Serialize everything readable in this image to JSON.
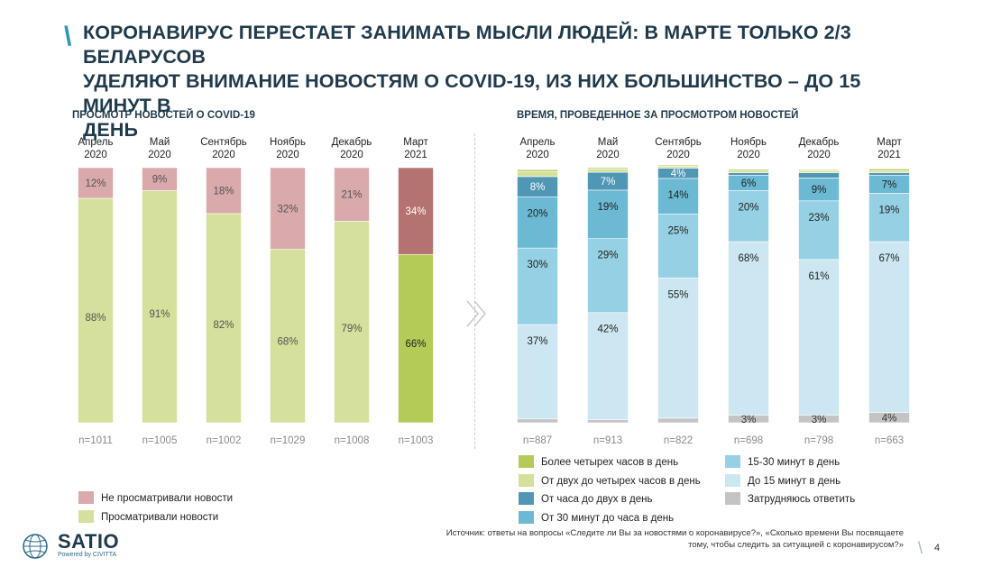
{
  "title": "КОРОНАВИРУС ПЕРЕСТАЕТ ЗАНИМАТЬ МЫСЛИ ЛЮДЕЙ: В МАРТЕ ТОЛЬКО 2/3 БЕЛАРУСОВ\nУДЕЛЯЮТ ВНИМАНИЕ НОВОСТЯМ О COVID-19, ИЗ НИХ БОЛЬШИНСТВО – ДО 15 МИНУТ В\nДЕНЬ",
  "title_slash": "\\",
  "logo": {
    "name": "SATIO",
    "tagline": "Powered by CIVITTA"
  },
  "source": "Источник: ответы на вопросы «Следите ли Вы за новостями о коронавирусе?»,  «Сколько времени Вы посвящаете\nтому, чтобы следить за ситуацией с коронавирусом?»",
  "page_number": "4",
  "page_slash": "\\",
  "colors": {
    "viewed": "#d4e09b",
    "not_viewed": "#d9a9ab",
    "viewed_highlight": "#b5cb58",
    "not_viewed_highlight": "#b47270",
    "more4h": "#b5cb58",
    "h2to4": "#d4e09b",
    "h1to2": "#4f97b5",
    "m30to60": "#6bb9d3",
    "m15to30": "#95d0e4",
    "upto15": "#cce7f1",
    "dk": "#c4c4c4"
  },
  "chart_data": [
    {
      "type": "bar",
      "stacked": true,
      "title": "ПРОСМОТР НОВОСТЕЙ О COVID-19",
      "categories": [
        "Апрель\n2020",
        "Май\n2020",
        "Сентябрь\n2020",
        "Ноябрь\n2020",
        "Декабрь\n2020",
        "Март\n2021"
      ],
      "sample_sizes": [
        "n=1011",
        "n=1005",
        "n=1002",
        "n=1029",
        "n=1008",
        "n=1003"
      ],
      "ylim": [
        0,
        100
      ],
      "series": [
        {
          "name": "Просматривали новости",
          "key": "viewed",
          "values": [
            88,
            91,
            82,
            68,
            79,
            66
          ],
          "labels": [
            "88%",
            "91%",
            "82%",
            "68%",
            "79%",
            "66%"
          ]
        },
        {
          "name": "Не просматривали новости",
          "key": "not_viewed",
          "values": [
            12,
            9,
            18,
            32,
            21,
            34
          ],
          "labels": [
            "12%",
            "9%",
            "18%",
            "32%",
            "21%",
            "34%"
          ]
        }
      ],
      "highlight_index": 5,
      "legend": [
        "Не просматривали новости",
        "Просматривали новости"
      ],
      "legend_placement": "bottom-left"
    },
    {
      "type": "bar",
      "stacked": true,
      "title": "ВРЕМЯ, ПРОВЕДЕННОЕ ЗА ПРОСМОТРОМ НОВОСТЕЙ",
      "categories": [
        "Апрель\n2020",
        "Май\n2020",
        "Сентябрь\n2020",
        "Ноябрь\n2020",
        "Декабрь\n2020",
        "Март\n2021"
      ],
      "sample_sizes": [
        "n=887",
        "n=913",
        "n=822",
        "n=698",
        "n=798",
        "n=663"
      ],
      "ylim": [
        0,
        100
      ],
      "series": [
        {
          "name": "Затрудняюсь ответить",
          "key": "dk",
          "values": [
            1.5,
            1.2,
            1.8,
            3,
            3,
            4
          ],
          "labels": [
            "",
            "",
            "",
            "3%",
            "3%",
            "4%"
          ]
        },
        {
          "name": "До 15 минут в день",
          "key": "upto15",
          "values": [
            37,
            42,
            55,
            68,
            61,
            67
          ],
          "labels": [
            "37%",
            "42%",
            "55%",
            "68%",
            "61%",
            "67%"
          ]
        },
        {
          "name": "15-30 минут в день",
          "key": "m15to30",
          "values": [
            30,
            29,
            25,
            20,
            23,
            19
          ],
          "labels": [
            "30%",
            "29%",
            "25%",
            "20%",
            "23%",
            "19%"
          ]
        },
        {
          "name": "От 30 минут до часа в день",
          "key": "m30to60",
          "values": [
            20,
            19,
            14,
            6,
            9,
            7
          ],
          "labels": [
            "20%",
            "19%",
            "14%",
            "6%",
            "9%",
            "7%"
          ]
        },
        {
          "name": "От часа до двух в день",
          "key": "h1to2",
          "values": [
            8,
            7,
            4,
            1,
            2,
            1
          ],
          "labels": [
            "8%",
            "7%",
            "4%",
            "",
            "",
            ""
          ]
        },
        {
          "name": "От двух до четырех часов в день",
          "key": "h2to4",
          "values": [
            2,
            1.3,
            0.8,
            0.7,
            0.8,
            0.8
          ],
          "labels": [
            "",
            "",
            "",
            "",
            "",
            ""
          ]
        },
        {
          "name": "Более четырех часов в день",
          "key": "more4h",
          "values": [
            0.7,
            0.5,
            0.4,
            0.6,
            0.4,
            0.7
          ],
          "labels": [
            "",
            "",
            "",
            "",
            "",
            ""
          ]
        }
      ],
      "legend": [
        {
          "name": "Более четырех часов в день",
          "key": "more4h"
        },
        {
          "name": "15-30 минут в день",
          "key": "m15to30"
        },
        {
          "name": "От двух до четырех часов в день",
          "key": "h2to4"
        },
        {
          "name": "До 15 минут в день",
          "key": "upto15"
        },
        {
          "name": "От часа до двух в день",
          "key": "h1to2"
        },
        {
          "name": "Затрудняюсь ответить",
          "key": "dk"
        },
        {
          "name": "От 30 минут до часа в день",
          "key": "m30to60"
        }
      ],
      "legend_placement": "bottom"
    }
  ]
}
